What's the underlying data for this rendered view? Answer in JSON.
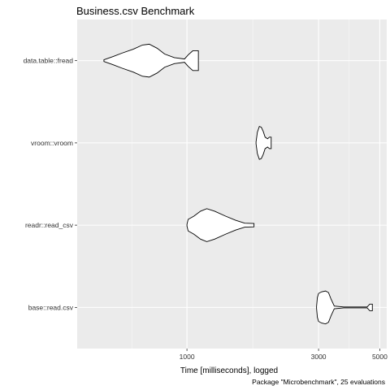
{
  "chart_data": {
    "type": "violin",
    "title": "Business.csv Benchmark",
    "xlabel": "Time [milliseconds], logged",
    "ylabel": "",
    "caption": "Package \"Microbenchmark\", 25 evaluations",
    "x_scale": "log",
    "xlim": [
      400,
      5300
    ],
    "x_ticks": [
      1000,
      3000,
      5000
    ],
    "x_tick_labels": [
      "1000",
      "3000",
      "5000"
    ],
    "categories": [
      "data.table::fread",
      "vroom::vroom",
      "readr::read_csv",
      "base::read.csv"
    ],
    "series": [
      {
        "category": "data.table::fread",
        "min": 500,
        "max": 1100,
        "profile": [
          [
            500,
            0.05
          ],
          [
            540,
            0.25
          ],
          [
            580,
            0.45
          ],
          [
            640,
            0.7
          ],
          [
            690,
            0.95
          ],
          [
            730,
            1.0
          ],
          [
            780,
            0.75
          ],
          [
            830,
            0.4
          ],
          [
            900,
            0.18
          ],
          [
            980,
            0.1
          ],
          [
            1010,
            0.35
          ],
          [
            1050,
            0.6
          ],
          [
            1100,
            0.6
          ]
        ]
      },
      {
        "category": "vroom::vroom",
        "min": 1780,
        "max": 2020,
        "profile": [
          [
            1780,
            0.05
          ],
          [
            1800,
            0.65
          ],
          [
            1830,
            1.0
          ],
          [
            1860,
            0.95
          ],
          [
            1890,
            0.7
          ],
          [
            1920,
            0.35
          ],
          [
            1960,
            0.25
          ],
          [
            1990,
            0.35
          ],
          [
            2020,
            0.35
          ]
        ]
      },
      {
        "category": "readr::read_csv",
        "min": 1000,
        "max": 1750,
        "profile": [
          [
            1000,
            0.05
          ],
          [
            1010,
            0.35
          ],
          [
            1060,
            0.55
          ],
          [
            1120,
            0.85
          ],
          [
            1180,
            1.0
          ],
          [
            1260,
            0.85
          ],
          [
            1380,
            0.55
          ],
          [
            1500,
            0.3
          ],
          [
            1620,
            0.12
          ],
          [
            1750,
            0.1
          ]
        ]
      },
      {
        "category": "base::read.csv",
        "min": 2950,
        "max": 4700,
        "profile": [
          [
            2950,
            0.05
          ],
          [
            2970,
            0.6
          ],
          [
            3000,
            0.85
          ],
          [
            3080,
            0.95
          ],
          [
            3180,
            1.0
          ],
          [
            3260,
            0.9
          ],
          [
            3330,
            0.5
          ],
          [
            3420,
            0.08
          ],
          [
            3700,
            0.03
          ],
          [
            4500,
            0.03
          ],
          [
            4600,
            0.2
          ],
          [
            4700,
            0.2
          ]
        ]
      }
    ],
    "grid": true,
    "legend": "none"
  }
}
